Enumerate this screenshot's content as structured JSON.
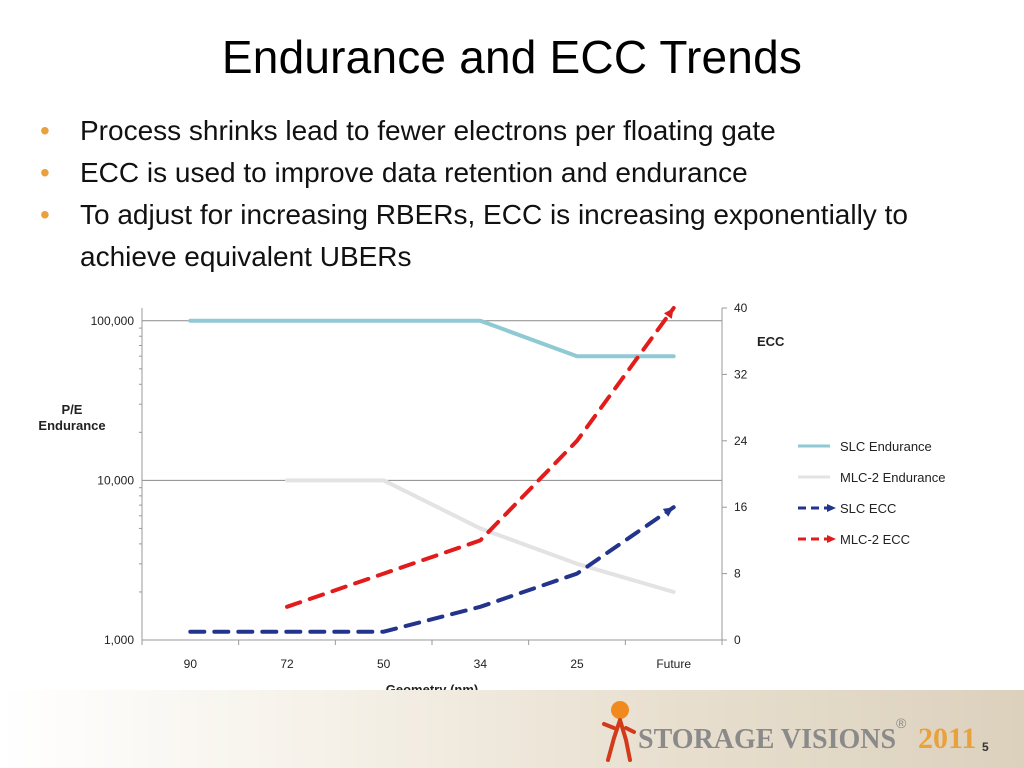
{
  "slide": {
    "title": "Endurance and ECC Trends",
    "bullets": [
      "Process shrinks lead to fewer electrons per floating gate",
      "ECC is used to improve data retention and endurance",
      "To adjust for increasing RBERs, ECC is increasing exponentially to achieve equivalent UBERs"
    ],
    "page_number": "5"
  },
  "footer": {
    "logo_text_main": "STORAGE VISIONS",
    "logo_text_year": "2011",
    "logo_registered": "®"
  },
  "chart_data": {
    "type": "line",
    "title": "",
    "xlabel": "Geometry (nm)",
    "categories": [
      "90",
      "72",
      "50",
      "34",
      "25",
      "Future"
    ],
    "y_left": {
      "label": "P/E Endurance",
      "scale": "log",
      "range": [
        1000,
        100000
      ],
      "tick_labels": [
        "1,000",
        "10,000",
        "100,000"
      ],
      "ticks": [
        1000,
        10000,
        100000
      ]
    },
    "y_right": {
      "label": "ECC",
      "range": [
        0,
        40
      ],
      "ticks": [
        0,
        8,
        16,
        24,
        32,
        40
      ]
    },
    "grid": "horizontal major gridlines on left axis",
    "legend": "right",
    "series": [
      {
        "name": "SLC Endurance",
        "axis": "left",
        "style": "solid",
        "color": "#8fc9d3",
        "values": [
          100000,
          100000,
          100000,
          100000,
          60000,
          60000
        ]
      },
      {
        "name": "MLC-2 Endurance",
        "axis": "left",
        "style": "solid",
        "color": "#e3e3e3",
        "values": [
          null,
          10000,
          10000,
          5000,
          3000,
          2000
        ]
      },
      {
        "name": "SLC ECC",
        "axis": "right",
        "style": "dashed",
        "color": "#23348c",
        "values": [
          1,
          1,
          1,
          4,
          8,
          16
        ]
      },
      {
        "name": "MLC-2 ECC",
        "axis": "right",
        "style": "dashed",
        "color": "#e21b1b",
        "values": [
          null,
          4,
          8,
          12,
          24,
          40
        ]
      }
    ]
  }
}
